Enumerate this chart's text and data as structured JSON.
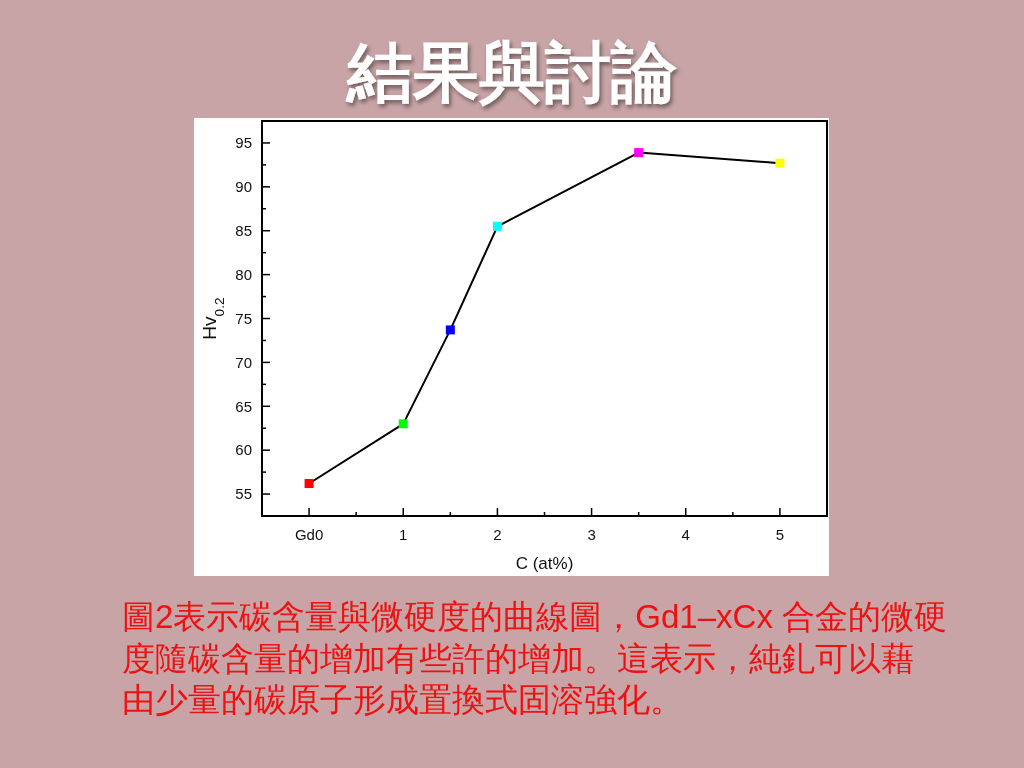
{
  "chart_data": {
    "type": "line",
    "title": "結果與討論",
    "xlabel": "C (at%)",
    "ylabel": "Hv$_{0.2}$",
    "x": [
      0,
      1,
      1.5,
      2,
      3.5,
      5
    ],
    "values": [
      56.2,
      63,
      73.7,
      85.5,
      93.9,
      92.7
    ],
    "color": "#000000",
    "colors": [
      "#ff0000",
      "#00ff00",
      "#0000ff",
      "#00ffff",
      "#ff00ff",
      "#ffff00"
    ],
    "marker": "square",
    "xlim": [
      -0.5,
      5.5
    ],
    "xticks": [
      {
        "value": 0,
        "label": "Gd0"
      },
      {
        "value": 0.5,
        "label": null
      },
      1,
      {
        "value": 1.5,
        "label": null
      },
      2,
      {
        "value": 2.5,
        "label": null
      },
      3,
      {
        "value": 3.5,
        "label": null
      },
      4,
      {
        "value": 4.5,
        "label": null
      },
      5
    ],
    "ylim": [
      52.5,
      97.5
    ],
    "yticks": [
      55,
      {
        "value": 57.5,
        "label": null
      },
      60,
      {
        "value": 62.5,
        "label": null
      },
      65,
      {
        "value": 67.5,
        "label": null
      },
      70,
      {
        "value": 72.5,
        "label": null
      },
      75,
      {
        "value": 77.5,
        "label": null
      },
      80,
      {
        "value": 82.5,
        "label": null
      },
      85,
      {
        "value": 87.5,
        "label": null
      },
      90,
      {
        "value": 92.5,
        "label": null
      },
      95
    ],
    "annotations": [
      "圖2表示碳含量與微硬度的曲線圖，Gd1–xCx 合金的微硬",
      "度隨碳含量的增加有些許的增加。這表示，純釓可以藉",
      "由少量的碳原子形成置換式固溶強化。"
    ]
  }
}
